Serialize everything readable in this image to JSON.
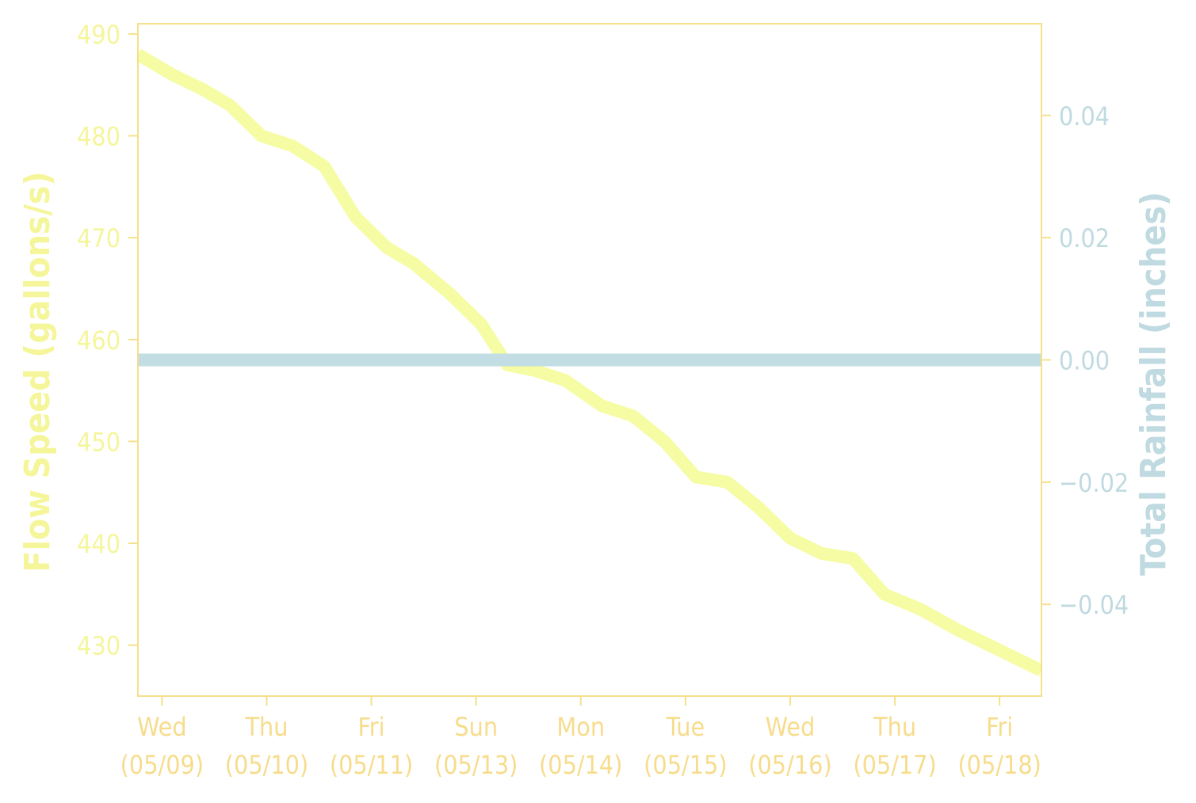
{
  "colors": {
    "axis": "#f5e08c",
    "left_axis_text": "#f5f59a",
    "right_axis_text": "#bfdae0",
    "flow_line": "#f5fca4",
    "rain_line": "#c2dde3",
    "x_text": "#f7dc8c"
  },
  "chart_data": {
    "type": "line",
    "title": "",
    "x_tick_labels": [
      {
        "weekday": "Wed",
        "date": "(05/09)",
        "day": 0
      },
      {
        "weekday": "Thu",
        "date": "(05/10)",
        "day": 1
      },
      {
        "weekday": "Fri",
        "date": "(05/11)",
        "day": 2
      },
      {
        "weekday": "Sun",
        "date": "(05/13)",
        "day": 3
      },
      {
        "weekday": "Mon",
        "date": "(05/14)",
        "day": 4
      },
      {
        "weekday": "Tue",
        "date": "(05/15)",
        "day": 5
      },
      {
        "weekday": "Wed",
        "date": "(05/16)",
        "day": 6
      },
      {
        "weekday": "Thu",
        "date": "(05/17)",
        "day": 7
      },
      {
        "weekday": "Fri",
        "date": "(05/18)",
        "day": 8
      }
    ],
    "xlim": [
      -0.23,
      8.4
    ],
    "left_axis": {
      "label": "Flow Speed (gallons/s)",
      "ylim": [
        425,
        491
      ],
      "ticks": [
        430,
        440,
        450,
        460,
        470,
        480,
        490
      ]
    },
    "right_axis": {
      "label": "Total Rainfall (inches)",
      "ylim": [
        -0.055,
        0.055
      ],
      "ticks": [
        -0.04,
        -0.02,
        0.0,
        0.02,
        0.04
      ],
      "tick_labels": [
        "−0.04",
        "−0.02",
        "0.00",
        "0.02",
        "0.04"
      ]
    },
    "series": [
      {
        "axis": "left",
        "x": [
          -0.23,
          0.1,
          0.4,
          0.65,
          0.95,
          1.25,
          1.55,
          1.85,
          2.15,
          2.4,
          2.75,
          3.05,
          3.3,
          3.55,
          3.85,
          4.2,
          4.5,
          4.8,
          5.1,
          5.4,
          5.7,
          6.0,
          6.3,
          6.6,
          6.9,
          7.25,
          7.6,
          7.9,
          8.2,
          8.4
        ],
        "y": [
          488,
          486,
          484.5,
          483,
          480,
          479,
          477,
          472,
          469,
          467.5,
          464.5,
          461.5,
          457.5,
          457,
          456,
          453.5,
          452.5,
          450,
          446.5,
          446,
          443.5,
          440.5,
          439,
          438.5,
          435,
          433.5,
          431.5,
          430,
          428.5,
          427.5
        ]
      },
      {
        "axis": "right",
        "x": [
          -0.23,
          8.4
        ],
        "y": [
          0.0,
          0.0
        ]
      }
    ]
  }
}
